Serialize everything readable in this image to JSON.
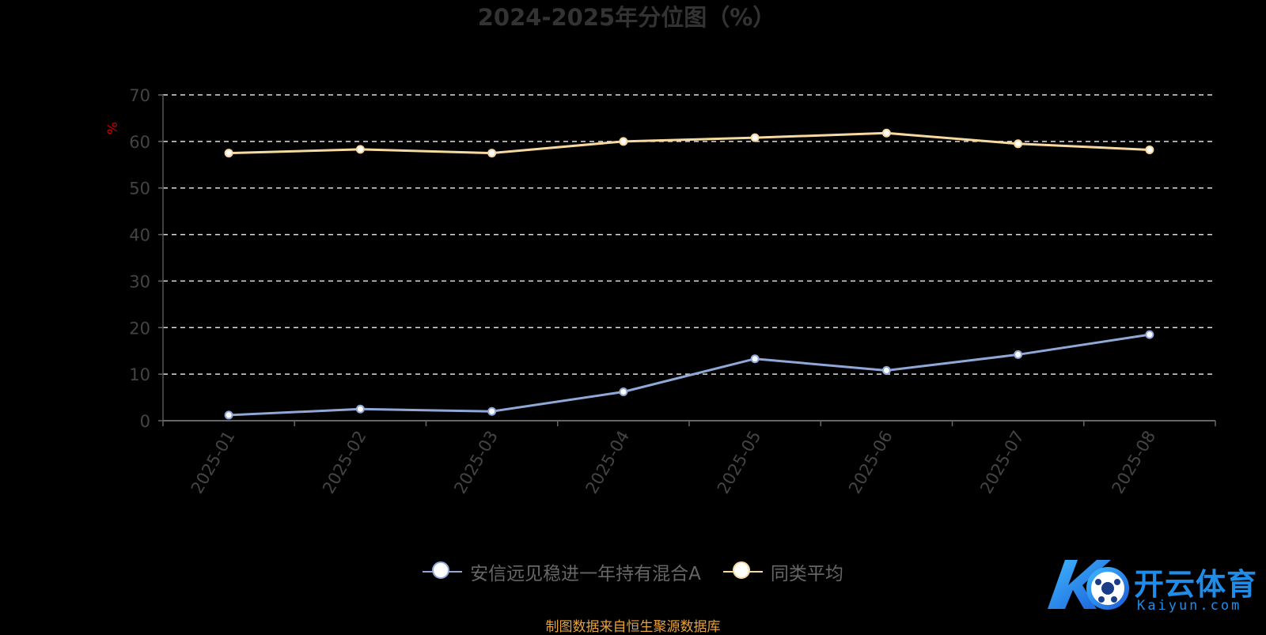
{
  "chart_data": {
    "type": "line",
    "title": "2024-2025年分位图（%）",
    "ylabel": "%",
    "categories": [
      "2025-01",
      "2025-02",
      "2025-03",
      "2025-04",
      "2025-05",
      "2025-06",
      "2025-07",
      "2025-08"
    ],
    "ylim": [
      0,
      70
    ],
    "yticks": [
      0,
      10,
      20,
      30,
      40,
      50,
      60,
      70
    ],
    "grid": true,
    "legend_position": "bottom",
    "series": [
      {
        "name": "安信远见稳进一年持有混合A",
        "color": "#8fa8d8",
        "values": [
          1.2,
          2.5,
          2.0,
          6.2,
          13.3,
          10.8,
          14.2,
          18.5
        ]
      },
      {
        "name": "同类平均",
        "color": "#f7d8a0",
        "values": [
          57.5,
          58.3,
          57.5,
          60.0,
          60.8,
          61.8,
          59.5,
          58.2
        ]
      }
    ]
  },
  "footer": "制图数据来自恒生聚源数据库",
  "logo": {
    "brand": "开云体育",
    "site": "Kaiyun.com",
    "colors": {
      "primary": "#1f8de8"
    }
  }
}
